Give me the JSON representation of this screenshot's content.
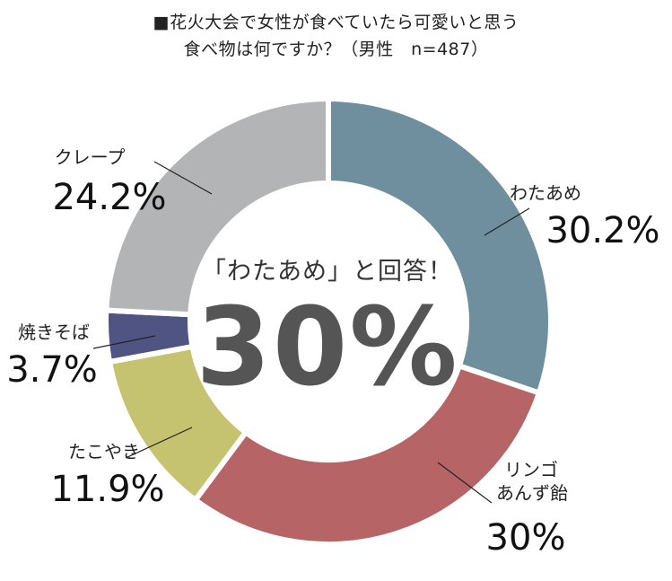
{
  "title_line1": "■花火大会で女性が食べていたら可愛いと思う",
  "title_line2": "食べ物は何ですか？（男性　n=487）",
  "center_callout": "「わたあめ」と回答！",
  "center_value": "30%",
  "chart_data": {
    "type": "pie",
    "title": "■花火大会で女性が食べていたら可愛いと思う 食べ物は何ですか？（男性　n=487）",
    "donut": true,
    "legend": "none",
    "slices": [
      {
        "label": "わたあめ",
        "value": 30.2,
        "value_text": "30.2%",
        "color": "#6f8f9f"
      },
      {
        "label": "リンゴ\nあんず飴",
        "value": 30.0,
        "value_text": "30%",
        "color": "#b76467"
      },
      {
        "label": "たこやき",
        "value": 11.9,
        "value_text": "11.9%",
        "color": "#c6c370"
      },
      {
        "label": "焼きそば",
        "value": 3.7,
        "value_text": "3.7%",
        "color": "#4f5482"
      },
      {
        "label": "クレープ",
        "value": 24.2,
        "value_text": "24.2%",
        "color": "#b2b4b5"
      }
    ]
  }
}
